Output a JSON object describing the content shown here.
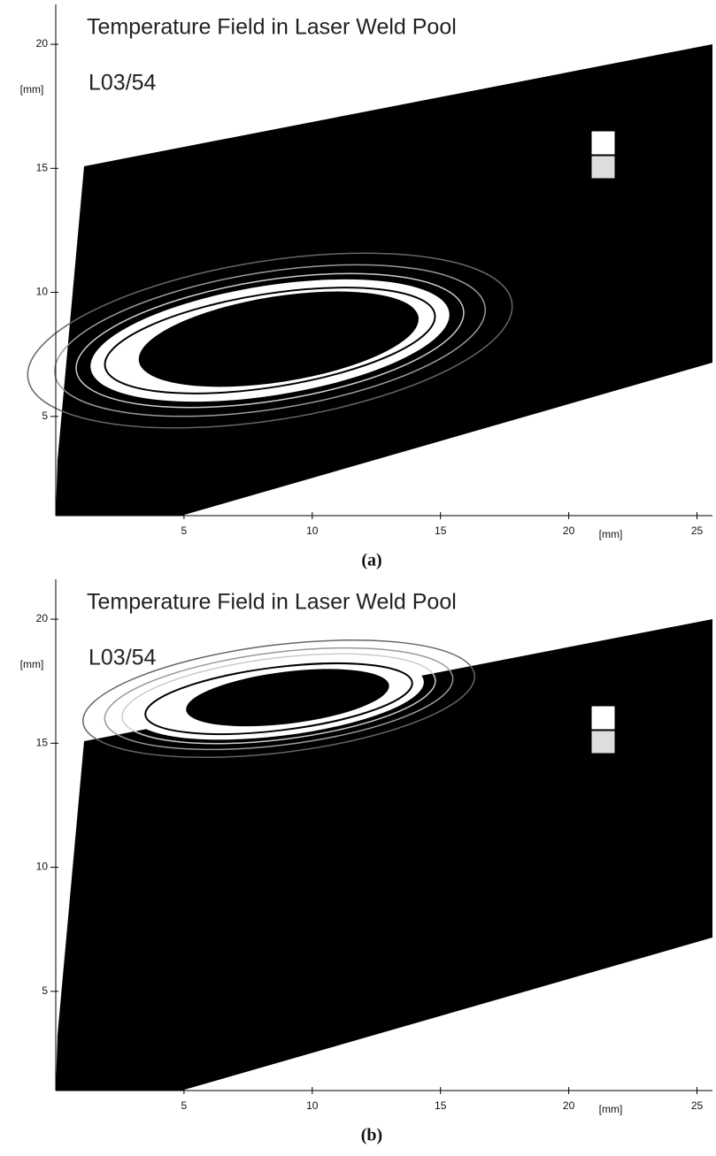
{
  "chart_data": [
    {
      "type": "contour",
      "title": "Temperature Field in Laser Weld Pool",
      "subtitle": "L03/54",
      "x_label": "[mm]",
      "y_label": "[mm]",
      "caption": "(a)",
      "xlim": [
        0,
        25.5
      ],
      "ylim": [
        1,
        21.5
      ],
      "xticks": [
        5,
        10,
        15,
        20,
        25
      ],
      "yticks": [
        5,
        10,
        15,
        20
      ]
    },
    {
      "type": "contour",
      "title": "Temperature Field in Laser Weld Pool",
      "subtitle": "L03/54",
      "x_label": "[mm]",
      "y_label": "[mm]",
      "caption": "(b)",
      "xlim": [
        0,
        25.5
      ],
      "ylim": [
        1,
        21.5
      ],
      "xticks": [
        5,
        10,
        15,
        20,
        25
      ],
      "yticks": [
        5,
        10,
        15,
        20
      ]
    }
  ]
}
